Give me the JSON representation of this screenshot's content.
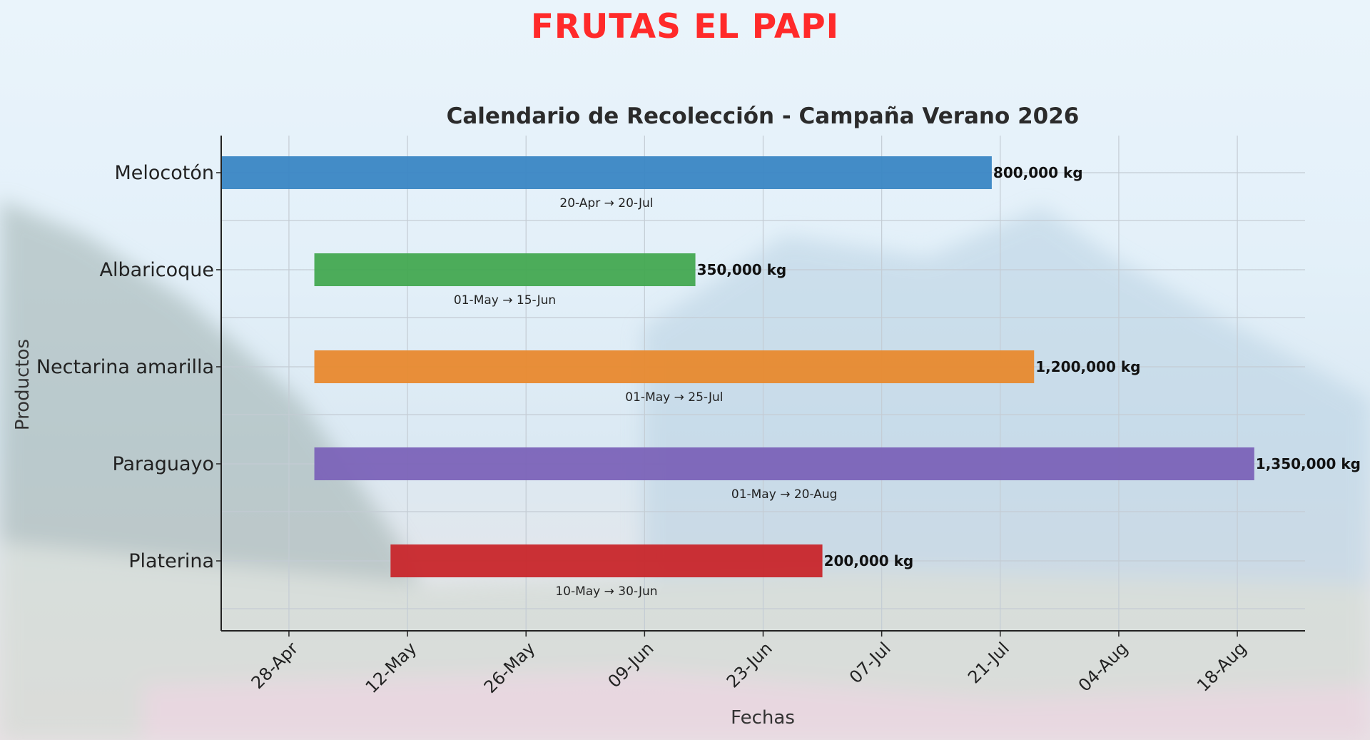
{
  "brand": {
    "title": "FRUTAS EL PAPI",
    "color": "#ff2a2a"
  },
  "chart_data": {
    "type": "bar",
    "orientation": "horizontal-gantt",
    "title": "Calendario de Recolección - Campaña Verano 2026",
    "xlabel": "Fechas",
    "ylabel": "Productos",
    "year": 2026,
    "xlim": [
      "2026-04-20",
      "2026-08-26"
    ],
    "xticks": [
      {
        "date": "2026-04-28",
        "label": "28-Apr"
      },
      {
        "date": "2026-05-12",
        "label": "12-May"
      },
      {
        "date": "2026-05-26",
        "label": "26-May"
      },
      {
        "date": "2026-06-09",
        "label": "09-Jun"
      },
      {
        "date": "2026-06-23",
        "label": "23-Jun"
      },
      {
        "date": "2026-07-07",
        "label": "07-Jul"
      },
      {
        "date": "2026-07-21",
        "label": "21-Jul"
      },
      {
        "date": "2026-08-04",
        "label": "04-Aug"
      },
      {
        "date": "2026-08-18",
        "label": "18-Aug"
      }
    ],
    "grid": true,
    "series": [
      {
        "category": "Melocotón",
        "start": "2026-04-20",
        "end": "2026-07-20",
        "value_label": "800,000 kg",
        "value_kg": 800000,
        "range_label": "20-Apr → 20-Jul",
        "color": "#3a86c4"
      },
      {
        "category": "Albaricoque",
        "start": "2026-05-01",
        "end": "2026-06-15",
        "value_label": "350,000 kg",
        "value_kg": 350000,
        "range_label": "01-May → 15-Jun",
        "color": "#43a851"
      },
      {
        "category": "Nectarina amarilla",
        "start": "2026-05-01",
        "end": "2026-07-25",
        "value_label": "1,200,000 kg",
        "value_kg": 1200000,
        "range_label": "01-May → 25-Jul",
        "color": "#e8892e"
      },
      {
        "category": "Paraguayo",
        "start": "2026-05-01",
        "end": "2026-08-20",
        "value_label": "1,350,000 kg",
        "value_kg": 1350000,
        "range_label": "01-May → 20-Aug",
        "color": "#7b63b8"
      },
      {
        "category": "Platerina",
        "start": "2026-05-10",
        "end": "2026-06-30",
        "value_label": "200,000 kg",
        "value_kg": 200000,
        "range_label": "10-May → 30-Jun",
        "color": "#c8262b"
      }
    ]
  }
}
